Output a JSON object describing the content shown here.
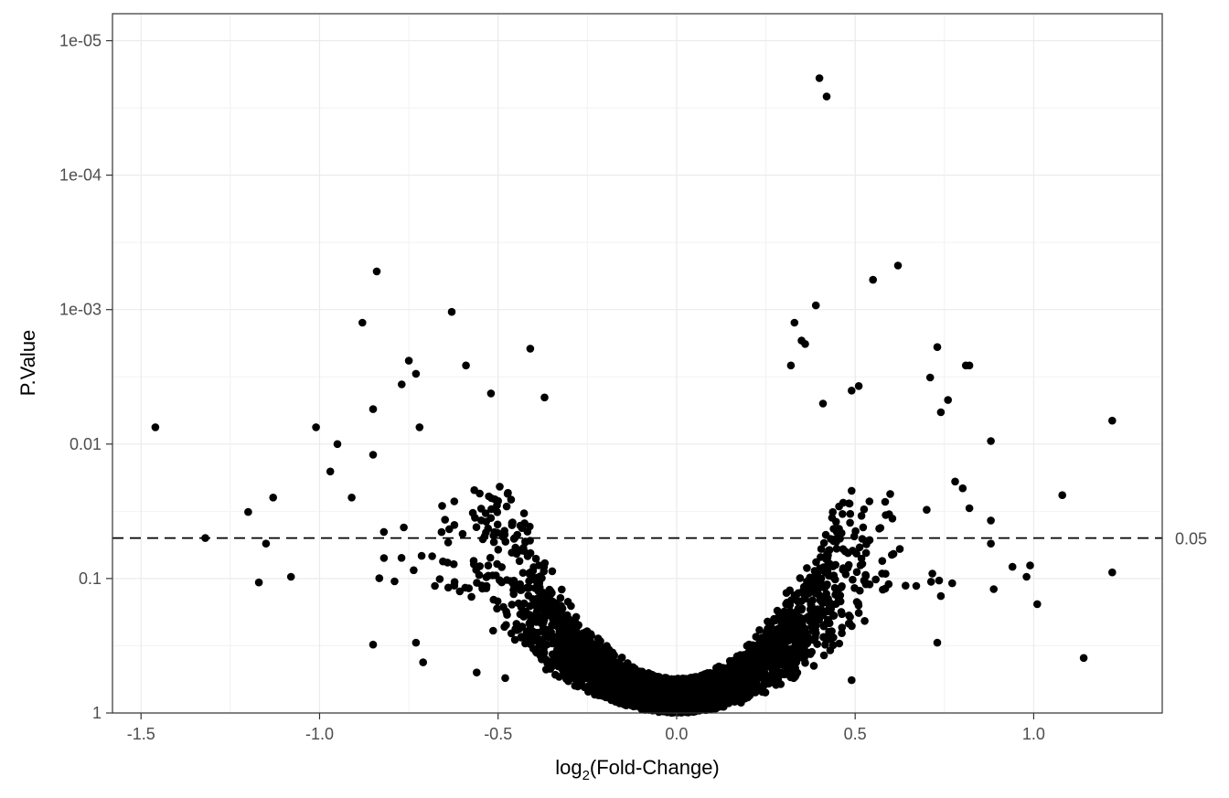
{
  "chart_data": {
    "type": "scatter",
    "title": "",
    "xlabel": {
      "main": "log",
      "sub": "2",
      "rest": "(Fold-Change)"
    },
    "ylabel": "P.Value",
    "x_scale": "linear",
    "y_scale": "log10-reversed",
    "xlim": [
      -1.58,
      1.36
    ],
    "ylim": [
      1,
      6.3e-06
    ],
    "x_ticks": [
      -1.5,
      -1.0,
      -0.5,
      0.0,
      0.5,
      1.0
    ],
    "x_tick_labels": [
      "-1.5",
      "-1.0",
      "-0.5",
      "0.0",
      "0.5",
      "1.0"
    ],
    "y_ticks": [
      1e-05,
      0.0001,
      0.001,
      0.01,
      0.1,
      1
    ],
    "y_tick_labels": [
      "1e-05",
      "1e-04",
      "1e-03",
      "0.01",
      "0.1",
      "1"
    ],
    "grid": true,
    "point_color": "#000000",
    "reference_line": {
      "y": 0.05,
      "label": "0.05",
      "style": "dashed",
      "color": "#000000"
    },
    "dense_cloud": {
      "description_kind": "volcano",
      "point_count": 4200,
      "seed": 17,
      "scale_sd": 0.2,
      "pvalue_floor": 0.02
    },
    "notable_points": [
      {
        "x": -1.46,
        "y": 0.0075
      },
      {
        "x": -1.32,
        "y": 0.05
      },
      {
        "x": -1.2,
        "y": 0.032
      },
      {
        "x": -1.17,
        "y": 0.107
      },
      {
        "x": -1.15,
        "y": 0.055
      },
      {
        "x": -1.13,
        "y": 0.025
      },
      {
        "x": -1.08,
        "y": 0.097
      },
      {
        "x": -1.01,
        "y": 0.0075
      },
      {
        "x": -0.97,
        "y": 0.016
      },
      {
        "x": -0.95,
        "y": 0.01
      },
      {
        "x": -0.91,
        "y": 0.025
      },
      {
        "x": -0.88,
        "y": 0.00125
      },
      {
        "x": -0.85,
        "y": 0.0055
      },
      {
        "x": -0.85,
        "y": 0.012
      },
      {
        "x": -0.85,
        "y": 0.31
      },
      {
        "x": -0.84,
        "y": 0.00052
      },
      {
        "x": -0.82,
        "y": 0.045
      },
      {
        "x": -0.79,
        "y": 0.105
      },
      {
        "x": -0.77,
        "y": 0.0036
      },
      {
        "x": -0.75,
        "y": 0.0024
      },
      {
        "x": -0.73,
        "y": 0.003
      },
      {
        "x": -0.72,
        "y": 0.0075
      },
      {
        "x": -0.73,
        "y": 0.3
      },
      {
        "x": -0.71,
        "y": 0.42
      },
      {
        "x": -0.63,
        "y": 0.00104
      },
      {
        "x": -0.59,
        "y": 0.0026
      },
      {
        "x": -0.52,
        "y": 0.0042
      },
      {
        "x": -0.41,
        "y": 0.00195
      },
      {
        "x": -0.37,
        "y": 0.0045
      },
      {
        "x": -0.56,
        "y": 0.5
      },
      {
        "x": -0.48,
        "y": 0.55
      },
      {
        "x": 0.4,
        "y": 1.9e-05
      },
      {
        "x": 0.42,
        "y": 2.6e-05
      },
      {
        "x": 0.55,
        "y": 0.0006
      },
      {
        "x": 0.62,
        "y": 0.00047
      },
      {
        "x": 0.39,
        "y": 0.00093
      },
      {
        "x": 0.33,
        "y": 0.00125
      },
      {
        "x": 0.35,
        "y": 0.0017
      },
      {
        "x": 0.36,
        "y": 0.0018
      },
      {
        "x": 0.32,
        "y": 0.0026
      },
      {
        "x": 0.41,
        "y": 0.005
      },
      {
        "x": 0.49,
        "y": 0.004
      },
      {
        "x": 0.51,
        "y": 0.0037
      },
      {
        "x": 0.73,
        "y": 0.0019
      },
      {
        "x": 0.71,
        "y": 0.0032
      },
      {
        "x": 0.76,
        "y": 0.0047
      },
      {
        "x": 0.81,
        "y": 0.0026
      },
      {
        "x": 0.82,
        "y": 0.0026
      },
      {
        "x": 0.74,
        "y": 0.0058
      },
      {
        "x": 0.88,
        "y": 0.0095
      },
      {
        "x": 0.78,
        "y": 0.019
      },
      {
        "x": 0.82,
        "y": 0.03
      },
      {
        "x": 0.88,
        "y": 0.037
      },
      {
        "x": 0.88,
        "y": 0.055
      },
      {
        "x": 1.08,
        "y": 0.024
      },
      {
        "x": 1.22,
        "y": 0.0067
      },
      {
        "x": 0.99,
        "y": 0.08
      },
      {
        "x": 0.98,
        "y": 0.097
      },
      {
        "x": 1.01,
        "y": 0.155
      },
      {
        "x": 1.22,
        "y": 0.09
      },
      {
        "x": 1.14,
        "y": 0.39
      },
      {
        "x": 0.74,
        "y": 0.135
      },
      {
        "x": 0.73,
        "y": 0.3
      },
      {
        "x": 0.49,
        "y": 0.57
      }
    ]
  }
}
